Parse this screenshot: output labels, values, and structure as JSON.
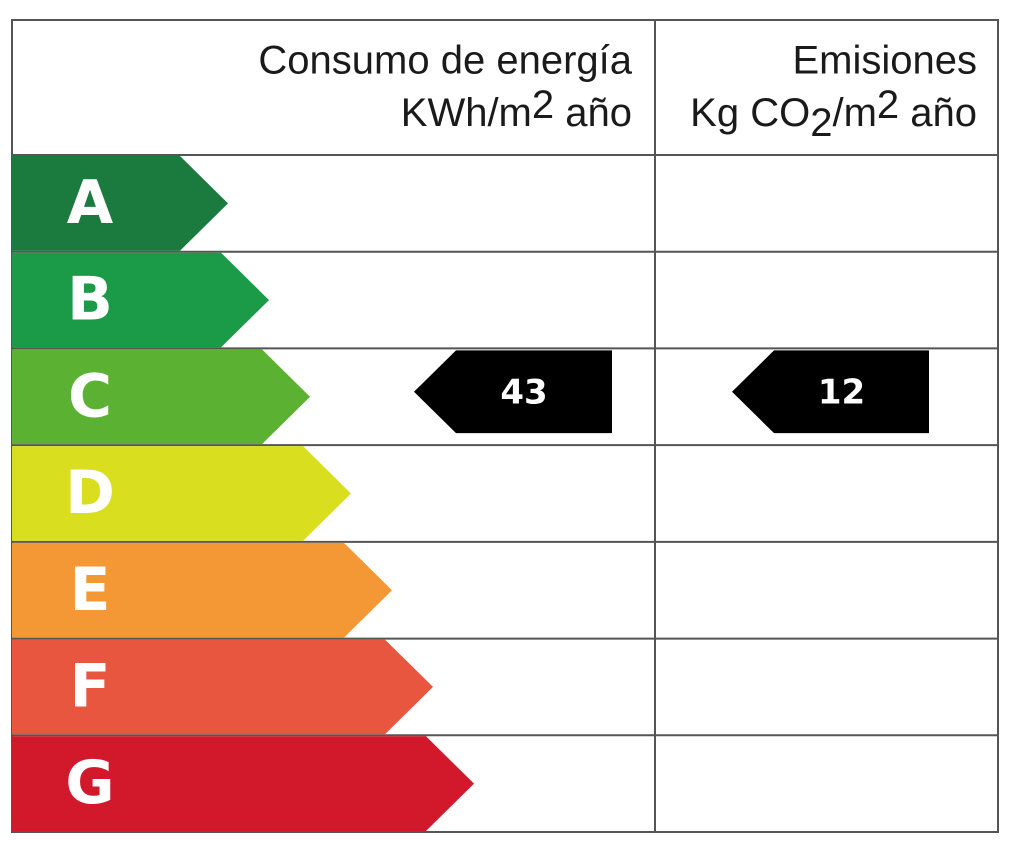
{
  "header": {
    "energy": {
      "title": "Consumo de energía",
      "unit": [
        "KWh/m",
        "2",
        " año"
      ]
    },
    "emissions": {
      "title": "Emisiones",
      "unit": [
        "Kg CO",
        "2",
        "/m",
        "2",
        " año"
      ]
    }
  },
  "rows": [
    {
      "letter": "A",
      "color": "#1b7a3d"
    },
    {
      "letter": "B",
      "color": "#1b9a48"
    },
    {
      "letter": "C",
      "color": "#5bb132",
      "energy": 43,
      "emissions": 12
    },
    {
      "letter": "D",
      "color": "#d9de1f"
    },
    {
      "letter": "E",
      "color": "#f39834"
    },
    {
      "letter": "F",
      "color": "#e8563f"
    },
    {
      "letter": "G",
      "color": "#d2192b"
    }
  ]
}
